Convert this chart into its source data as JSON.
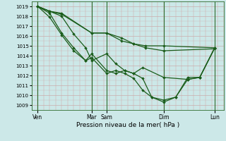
{
  "xlabel": "Pression niveau de la mer( hPa )",
  "bg_color": "#cce8e8",
  "plot_bg_color": "#cce8e8",
  "line_color": "#1a5c1a",
  "grid_color_v": "#d4a0a0",
  "grid_color_h": "#a8c8c8",
  "ylim": [
    1008.5,
    1019.5
  ],
  "xlim": [
    0,
    32
  ],
  "yticks": [
    1009,
    1010,
    1011,
    1012,
    1013,
    1014,
    1015,
    1016,
    1017,
    1018,
    1019
  ],
  "xtick_labels": [
    "Ven",
    "Mar",
    "Sam",
    "Dim",
    "Lun"
  ],
  "xtick_positions": [
    1,
    10,
    12.5,
    22,
    30.5
  ],
  "vline_positions": [
    1,
    10,
    12.5,
    22,
    30.5
  ],
  "lines": [
    {
      "x": [
        1,
        3,
        5,
        10,
        12.5,
        15,
        17,
        19,
        22,
        30.5
      ],
      "y": [
        1019,
        1018.5,
        1018.3,
        1016.3,
        1016.3,
        1015.8,
        1015.2,
        1015.0,
        1015.0,
        1014.8
      ]
    },
    {
      "x": [
        1,
        3,
        5,
        10,
        12.5,
        15,
        17,
        19,
        22,
        30.5
      ],
      "y": [
        1019,
        1018.5,
        1018.2,
        1016.3,
        1016.3,
        1015.5,
        1015.2,
        1014.8,
        1014.5,
        1014.7
      ]
    },
    {
      "x": [
        1,
        3,
        5,
        7,
        9,
        10,
        12.5,
        14,
        15.5,
        17,
        18.5,
        22,
        26,
        28,
        30.5
      ],
      "y": [
        1019,
        1018.5,
        1018.0,
        1016.2,
        1014.8,
        1013.5,
        1014.2,
        1013.2,
        1012.5,
        1012.2,
        1012.8,
        1011.8,
        1011.6,
        1011.8,
        1014.8
      ]
    },
    {
      "x": [
        1,
        3,
        5,
        7,
        9,
        10,
        12.5,
        14,
        15.5,
        17,
        18.5,
        20,
        22,
        24,
        26,
        28,
        30.5
      ],
      "y": [
        1019,
        1018.3,
        1016.3,
        1014.8,
        1013.5,
        1014.2,
        1012.5,
        1012.2,
        1012.5,
        1012.2,
        1011.7,
        1009.8,
        1009.5,
        1009.8,
        1011.6,
        1011.8,
        1014.8
      ]
    },
    {
      "x": [
        1,
        3,
        5,
        7,
        9,
        10,
        12.5,
        14,
        15.5,
        17,
        18.5,
        20,
        22,
        24,
        26,
        28,
        30.5
      ],
      "y": [
        1019,
        1017.9,
        1016.1,
        1014.5,
        1013.5,
        1013.8,
        1012.2,
        1012.5,
        1012.2,
        1011.7,
        1010.5,
        1009.8,
        1009.3,
        1009.8,
        1011.8,
        1011.8,
        1014.8
      ]
    }
  ],
  "figsize": [
    3.2,
    2.0
  ],
  "dpi": 100
}
